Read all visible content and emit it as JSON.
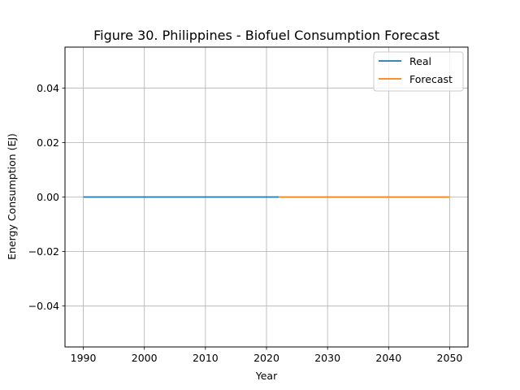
{
  "chart_data": {
    "type": "line",
    "title": "Figure 30. Philippines - Biofuel Consumption Forecast",
    "xlabel": "Year",
    "ylabel": "Energy Consumption (EJ)",
    "xlim": [
      1987,
      2053
    ],
    "ylim": [
      -0.055,
      0.055
    ],
    "xticks": [
      1990,
      2000,
      2010,
      2020,
      2030,
      2040,
      2050
    ],
    "yticks": [
      -0.04,
      -0.02,
      0.0,
      0.02,
      0.04
    ],
    "ytick_labels": [
      "−0.04",
      "−0.02",
      "0.00",
      "0.02",
      "0.04"
    ],
    "grid": true,
    "legend_position": "top-right",
    "series": [
      {
        "name": "Real",
        "color": "#1f77b4",
        "x": [
          1990,
          2022
        ],
        "y": [
          0.0,
          0.0
        ]
      },
      {
        "name": "Forecast",
        "color": "#ff7f0e",
        "x": [
          2022,
          2050
        ],
        "y": [
          0.0,
          0.0
        ]
      }
    ]
  }
}
